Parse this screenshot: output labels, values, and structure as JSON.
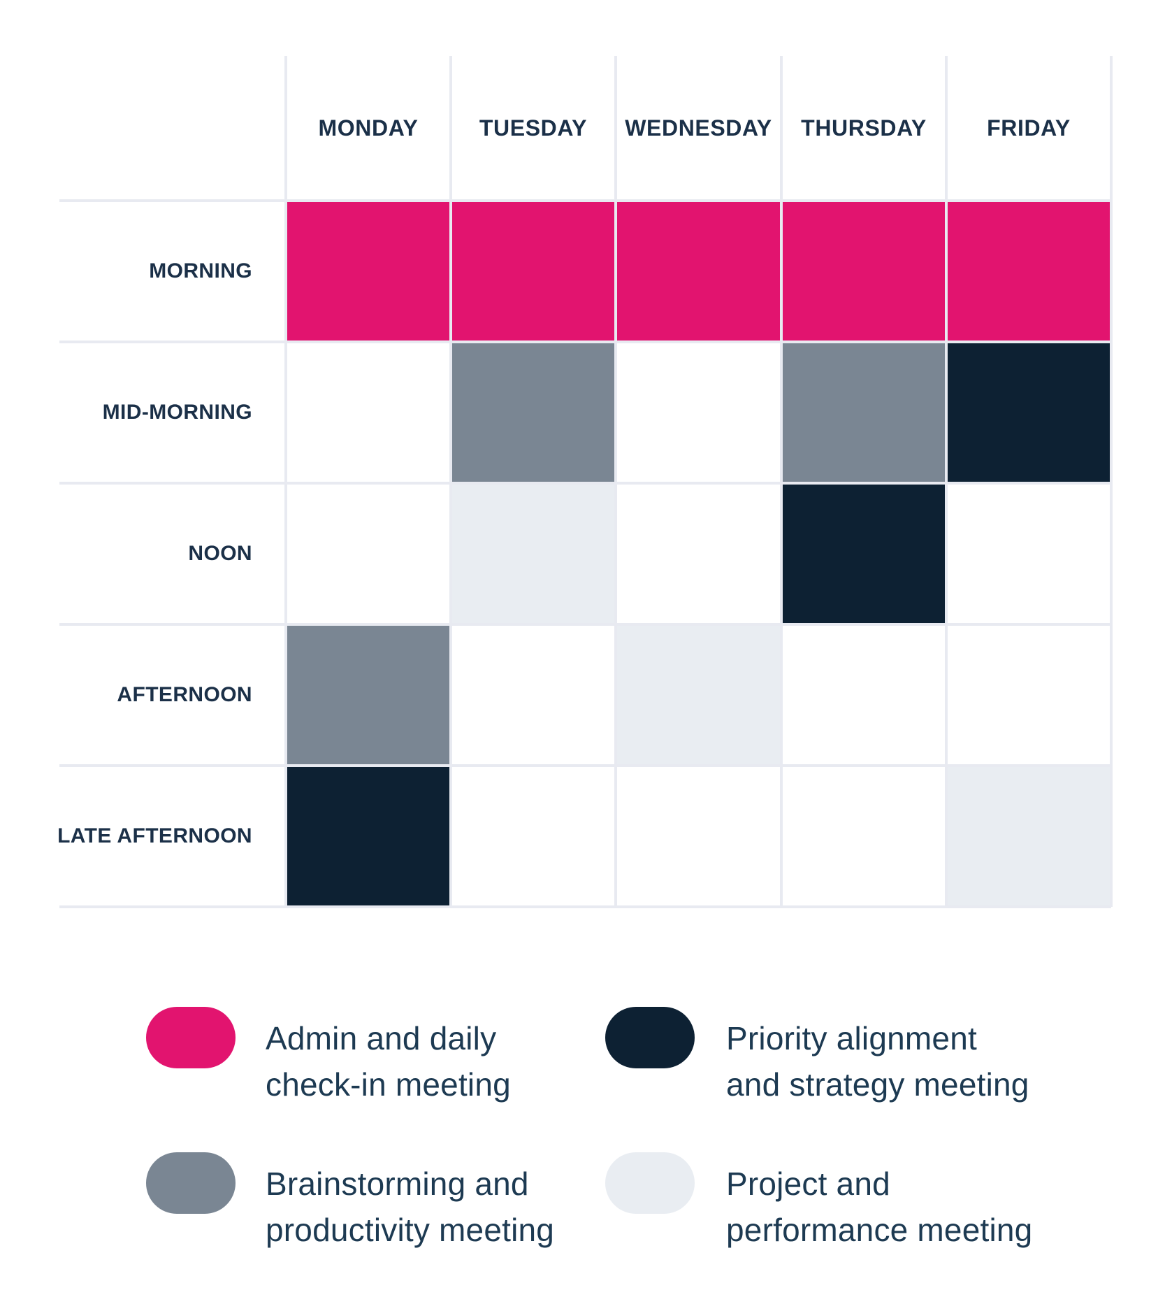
{
  "grid": {
    "days": [
      "MONDAY",
      "TUESDAY",
      "WEDNESDAY",
      "THURSDAY",
      "FRIDAY"
    ],
    "times": [
      "MORNING",
      "MID-MORNING",
      "NOON",
      "AFTERNOON",
      "LATE AFTERNOON"
    ],
    "matrix": [
      [
        "admin",
        "admin",
        "admin",
        "admin",
        "admin"
      ],
      [
        null,
        "brainstorm",
        null,
        "brainstorm",
        "priority"
      ],
      [
        null,
        "project",
        null,
        "priority",
        null
      ],
      [
        "brainstorm",
        null,
        "project",
        null,
        null
      ],
      [
        "priority",
        null,
        null,
        null,
        "project"
      ]
    ]
  },
  "legend": {
    "items": [
      {
        "id": "admin",
        "label": "Admin and daily\ncheck-in meeting",
        "color": "#E2146F"
      },
      {
        "id": "priority",
        "label": "Priority alignment\nand strategy meeting",
        "color": "#0D2133"
      },
      {
        "id": "brainstorm",
        "label": "Brainstorming and\nproductivity meeting",
        "color": "#7A8693"
      },
      {
        "id": "project",
        "label": "Project and\nperformance meeting",
        "color": "#E9EDF2"
      }
    ]
  },
  "colors": {
    "admin": "#E2146F",
    "priority": "#0D2133",
    "brainstorm": "#7A8693",
    "project": "#E9EDF2",
    "gridline": "#E8EAF1",
    "grid_label_text": "#1B3048",
    "legend_text": "#1D3A52",
    "background": "#FFFFFF"
  },
  "chart_data": {
    "type": "heatmap",
    "title": "",
    "x_categories": [
      "MONDAY",
      "TUESDAY",
      "WEDNESDAY",
      "THURSDAY",
      "FRIDAY"
    ],
    "y_categories": [
      "MORNING",
      "MID-MORNING",
      "NOON",
      "AFTERNOON",
      "LATE AFTERNOON"
    ],
    "cell_values": [
      [
        "Admin and daily check-in meeting",
        "Admin and daily check-in meeting",
        "Admin and daily check-in meeting",
        "Admin and daily check-in meeting",
        "Admin and daily check-in meeting"
      ],
      [
        null,
        "Brainstorming and productivity meeting",
        null,
        "Brainstorming and productivity meeting",
        "Priority alignment and strategy meeting"
      ],
      [
        null,
        "Project and performance meeting",
        null,
        "Priority alignment and strategy meeting",
        null
      ],
      [
        "Brainstorming and productivity meeting",
        null,
        "Project and performance meeting",
        null,
        null
      ],
      [
        "Priority alignment and strategy meeting",
        null,
        null,
        null,
        "Project and performance meeting"
      ]
    ],
    "legend_entries": [
      {
        "label": "Admin and daily check-in meeting",
        "color": "#E2146F"
      },
      {
        "label": "Priority alignment and strategy meeting",
        "color": "#0D2133"
      },
      {
        "label": "Brainstorming and productivity meeting",
        "color": "#7A8693"
      },
      {
        "label": "Project and performance meeting",
        "color": "#E9EDF2"
      }
    ],
    "grid": true,
    "legend_position": "bottom"
  }
}
